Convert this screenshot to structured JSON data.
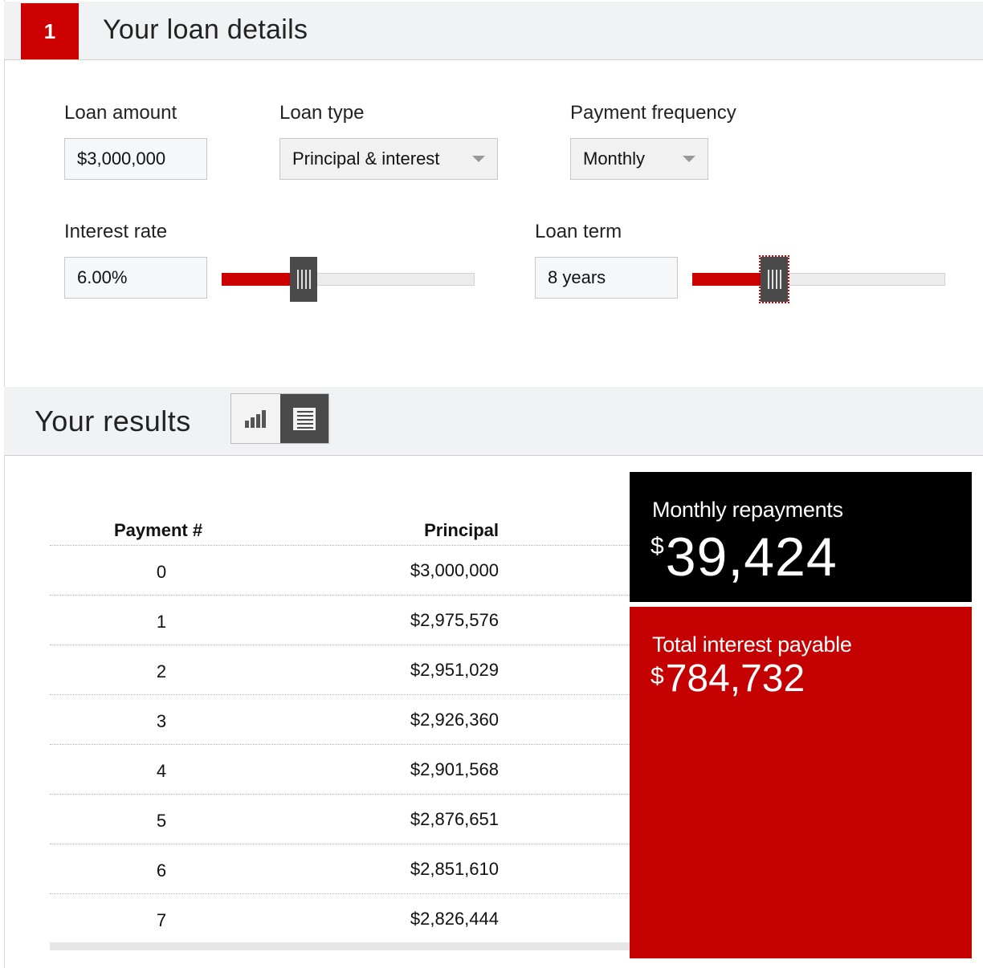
{
  "loan_details": {
    "step_number": "1",
    "title": "Your loan details",
    "loan_amount": {
      "label": "Loan amount",
      "value": "$3,000,000"
    },
    "loan_type": {
      "label": "Loan type",
      "selected": "Principal & interest"
    },
    "payment_frequency": {
      "label": "Payment frequency",
      "selected": "Monthly"
    },
    "interest_rate": {
      "label": "Interest rate",
      "value": "6.00%",
      "slider_level": 0.27
    },
    "loan_term": {
      "label": "Loan term",
      "value": "8 years",
      "slider_level": 0.27
    }
  },
  "results": {
    "title": "Your results",
    "view_toggle": {
      "options": [
        "chart-view",
        "table-view"
      ],
      "selected": "table-view"
    },
    "table": {
      "headers": [
        "Payment #",
        "Principal"
      ],
      "rows": [
        {
          "payment": "0",
          "principal": "$3,000,000"
        },
        {
          "payment": "1",
          "principal": "$2,975,576"
        },
        {
          "payment": "2",
          "principal": "$2,951,029"
        },
        {
          "payment": "3",
          "principal": "$2,926,360"
        },
        {
          "payment": "4",
          "principal": "$2,901,568"
        },
        {
          "payment": "5",
          "principal": "$2,876,651"
        },
        {
          "payment": "6",
          "principal": "$2,851,610"
        },
        {
          "payment": "7",
          "principal": "$2,826,444"
        }
      ]
    },
    "monthly_repayments": {
      "label": "Monthly repayments",
      "currency": "$",
      "amount": "39,424"
    },
    "total_interest": {
      "label": "Total interest payable",
      "currency": "$",
      "amount": "784,732"
    }
  },
  "colors": {
    "accent": "#cc0000",
    "summary_black": "#000000",
    "summary_red": "#c40000",
    "header_bg": "#f1f2f3"
  }
}
